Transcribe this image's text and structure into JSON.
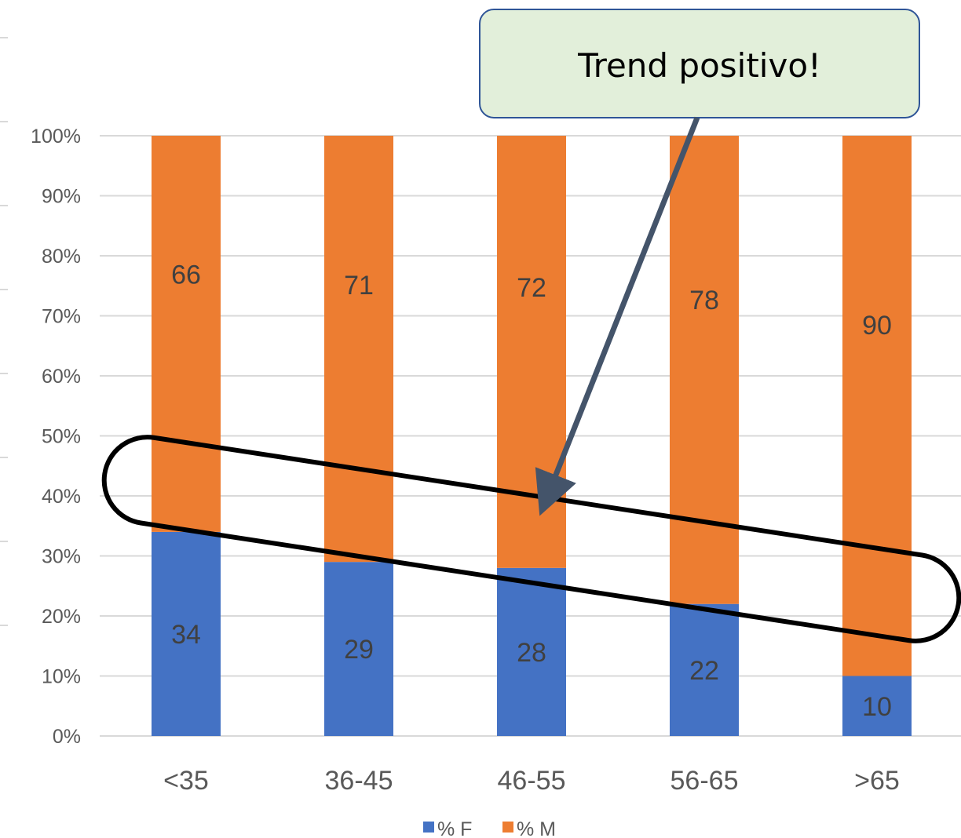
{
  "chart_data": {
    "type": "bar",
    "stacked": true,
    "percent": true,
    "categories": [
      "<35",
      "36-45",
      "46-55",
      "56-65",
      ">65"
    ],
    "series": [
      {
        "name": "% F",
        "values": [
          34,
          29,
          28,
          22,
          10
        ],
        "color": "#4472C4"
      },
      {
        "name": "% M",
        "values": [
          66,
          71,
          72,
          78,
          90
        ],
        "color": "#ED7D31"
      }
    ],
    "ylim": [
      0,
      100
    ],
    "yticks": [
      "0%",
      "10%",
      "20%",
      "30%",
      "40%",
      "50%",
      "60%",
      "70%",
      "80%",
      "90%",
      "100%"
    ],
    "grid": true,
    "legend": "bottom",
    "annotation": {
      "text": "Trend positivo!"
    }
  }
}
